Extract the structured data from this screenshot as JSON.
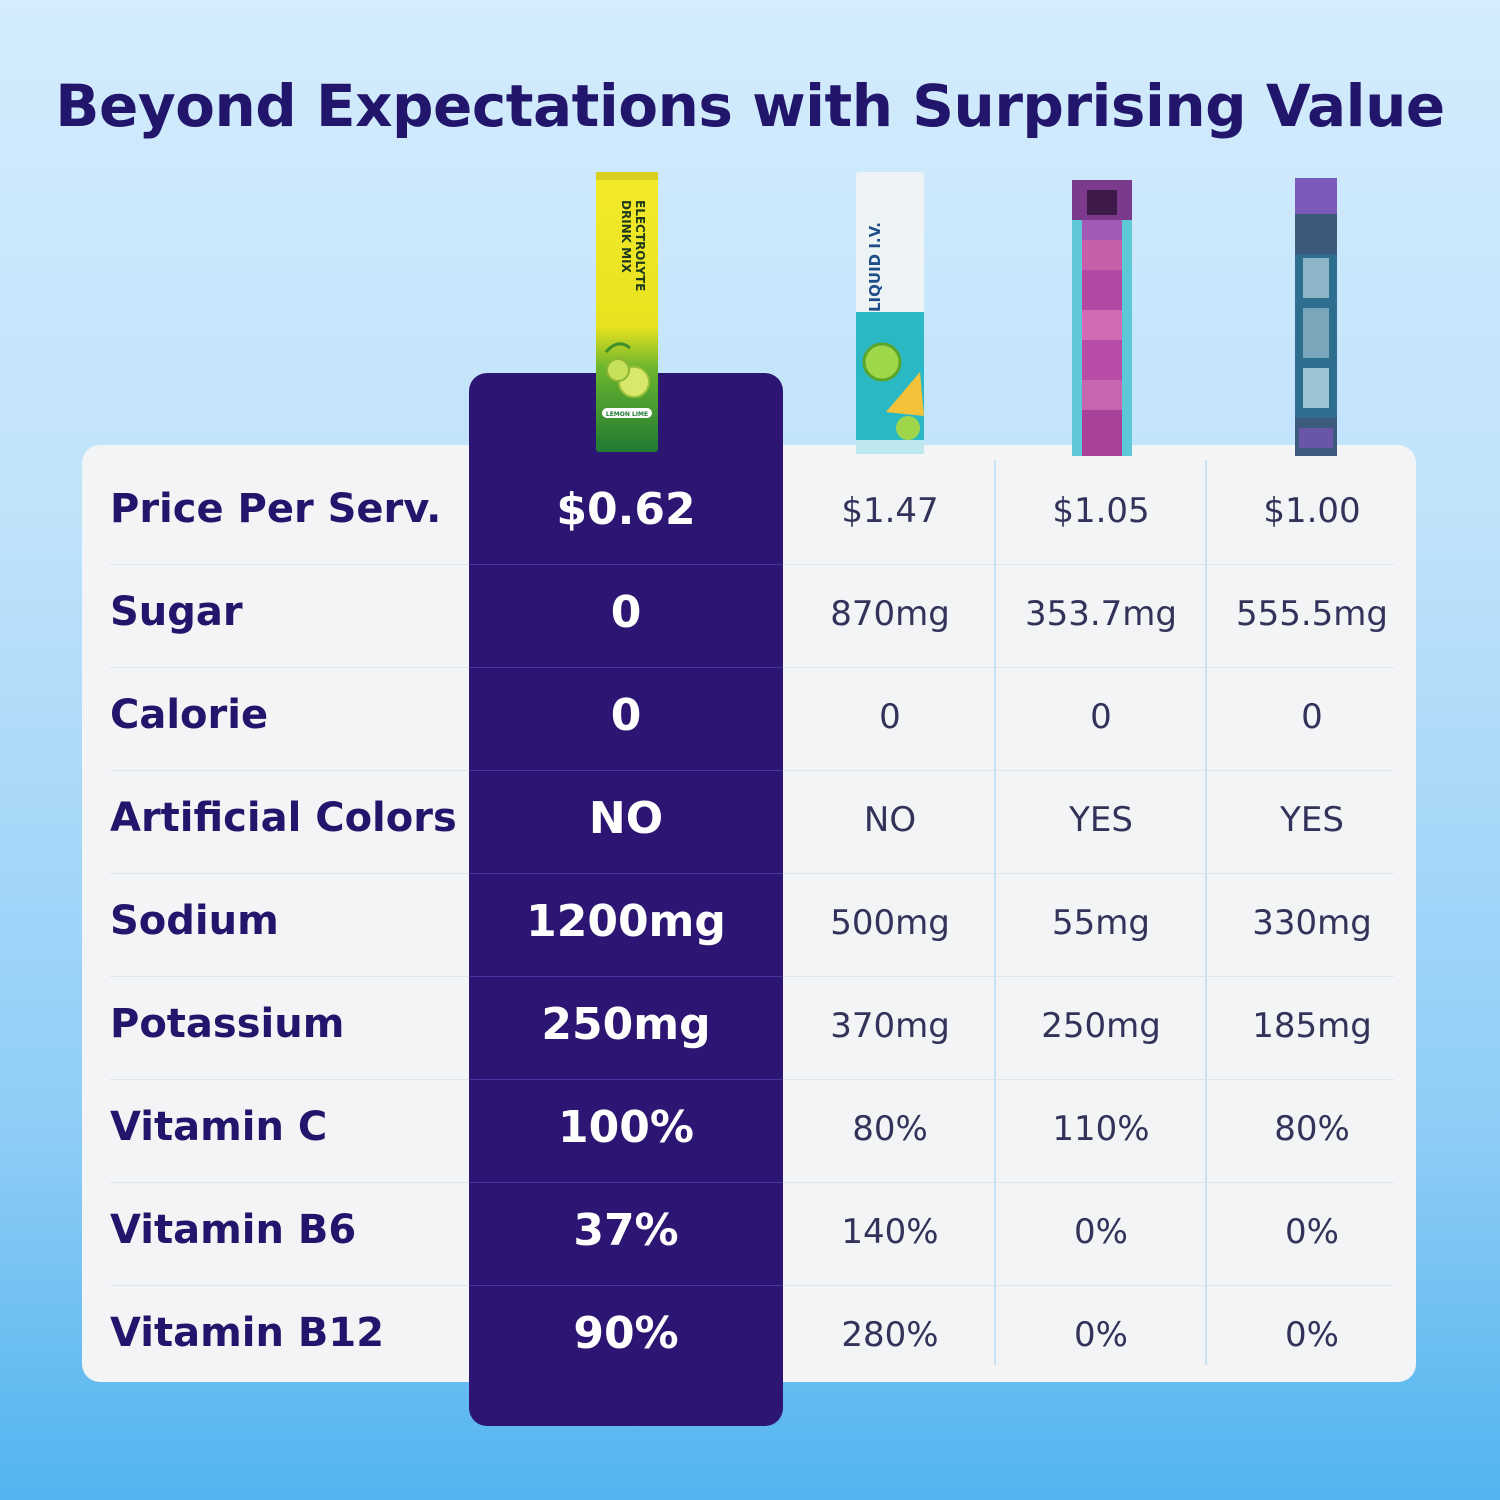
{
  "title": "Beyond Expectations with Surprising Value",
  "products": [
    {
      "icon": "electrolyte-drink-mix-stick-pack-image",
      "label_lines": [
        "ELECTROLYTE",
        "DRINK MIX"
      ],
      "flavor": "LEMON LIME",
      "highlighted": true
    },
    {
      "icon": "liquid-iv-stick-pack-image",
      "label_lines": [
        "LIQUID I.V."
      ],
      "highlighted": false
    },
    {
      "icon": "pixelated-purple-stick-pack-image",
      "highlighted": false
    },
    {
      "icon": "pixelated-blue-stick-pack-image",
      "highlighted": false
    }
  ],
  "rows": [
    {
      "label": "Price Per Serv.",
      "values": [
        "$0.62",
        "$1.47",
        "$1.05",
        "$1.00"
      ]
    },
    {
      "label": "Sugar",
      "values": [
        "0",
        "870mg",
        "353.7mg",
        "555.5mg"
      ]
    },
    {
      "label": "Calorie",
      "values": [
        "0",
        "0",
        "0",
        "0"
      ]
    },
    {
      "label": "Artificial Colors",
      "values": [
        "NO",
        "NO",
        "YES",
        "YES"
      ]
    },
    {
      "label": "Sodium",
      "values": [
        "1200mg",
        "500mg",
        "55mg",
        "330mg"
      ]
    },
    {
      "label": "Potassium",
      "values": [
        "250mg",
        "370mg",
        "250mg",
        "185mg"
      ]
    },
    {
      "label": "Vitamin C",
      "values": [
        "100%",
        "80%",
        "110%",
        "80%"
      ]
    },
    {
      "label": "Vitamin B6",
      "values": [
        "37%",
        "140%",
        "0%",
        "0%"
      ]
    },
    {
      "label": "Vitamin B12",
      "values": [
        "90%",
        "280%",
        "0%",
        "0%"
      ]
    }
  ],
  "colors": {
    "title": "#22156c",
    "highlight": "#2d1673",
    "card": "#f3f4f6"
  }
}
